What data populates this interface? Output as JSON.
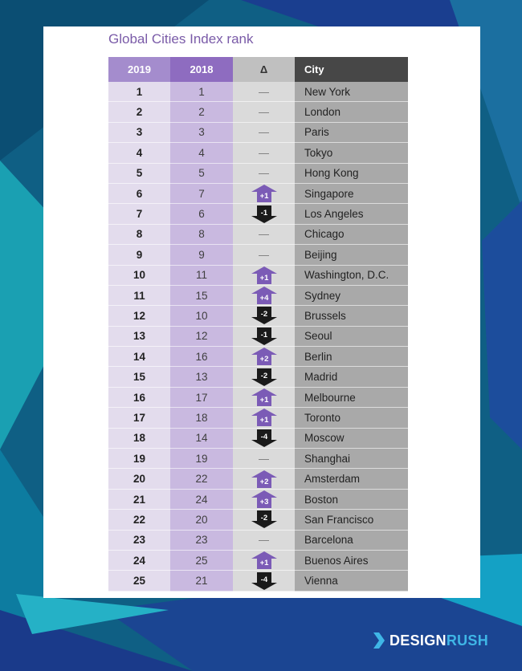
{
  "title": "Global Cities Index rank",
  "columns": [
    "2019",
    "2018",
    "Δ",
    "City"
  ],
  "rows": [
    {
      "r2019": "1",
      "r2018": "1",
      "delta": "—",
      "city": "New York"
    },
    {
      "r2019": "2",
      "r2018": "2",
      "delta": "—",
      "city": "London"
    },
    {
      "r2019": "3",
      "r2018": "3",
      "delta": "—",
      "city": "Paris"
    },
    {
      "r2019": "4",
      "r2018": "4",
      "delta": "—",
      "city": "Tokyo"
    },
    {
      "r2019": "5",
      "r2018": "5",
      "delta": "—",
      "city": "Hong Kong"
    },
    {
      "r2019": "6",
      "r2018": "7",
      "delta": "+1",
      "city": "Singapore"
    },
    {
      "r2019": "7",
      "r2018": "6",
      "delta": "-1",
      "city": "Los Angeles"
    },
    {
      "r2019": "8",
      "r2018": "8",
      "delta": "—",
      "city": "Chicago"
    },
    {
      "r2019": "9",
      "r2018": "9",
      "delta": "—",
      "city": "Beijing"
    },
    {
      "r2019": "10",
      "r2018": "11",
      "delta": "+1",
      "city": "Washington, D.C."
    },
    {
      "r2019": "11",
      "r2018": "15",
      "delta": "+4",
      "city": "Sydney"
    },
    {
      "r2019": "12",
      "r2018": "10",
      "delta": "-2",
      "city": "Brussels"
    },
    {
      "r2019": "13",
      "r2018": "12",
      "delta": "-1",
      "city": "Seoul"
    },
    {
      "r2019": "14",
      "r2018": "16",
      "delta": "+2",
      "city": "Berlin"
    },
    {
      "r2019": "15",
      "r2018": "13",
      "delta": "-2",
      "city": "Madrid"
    },
    {
      "r2019": "16",
      "r2018": "17",
      "delta": "+1",
      "city": "Melbourne"
    },
    {
      "r2019": "17",
      "r2018": "18",
      "delta": "+1",
      "city": "Toronto"
    },
    {
      "r2019": "18",
      "r2018": "14",
      "delta": "-4",
      "city": "Moscow"
    },
    {
      "r2019": "19",
      "r2018": "19",
      "delta": "—",
      "city": "Shanghai"
    },
    {
      "r2019": "20",
      "r2018": "22",
      "delta": "+2",
      "city": "Amsterdam"
    },
    {
      "r2019": "21",
      "r2018": "24",
      "delta": "+3",
      "city": "Boston"
    },
    {
      "r2019": "22",
      "r2018": "20",
      "delta": "-2",
      "city": "San Francisco"
    },
    {
      "r2019": "23",
      "r2018": "23",
      "delta": "—",
      "city": "Barcelona"
    },
    {
      "r2019": "24",
      "r2018": "25",
      "delta": "+1",
      "city": "Buenos Aires"
    },
    {
      "r2019": "25",
      "r2018": "21",
      "delta": "-4",
      "city": "Vienna"
    }
  ],
  "colors": {
    "up_arrow": "#7b5bb6",
    "down_arrow": "#1a1a1a",
    "background": "#0f5f84"
  },
  "icons": {
    "up": "up-arrow-icon",
    "down": "down-arrow-icon",
    "logo": "chevron-logo-icon"
  },
  "logo": {
    "part1": "DESIGN",
    "part2": "RUSH"
  }
}
